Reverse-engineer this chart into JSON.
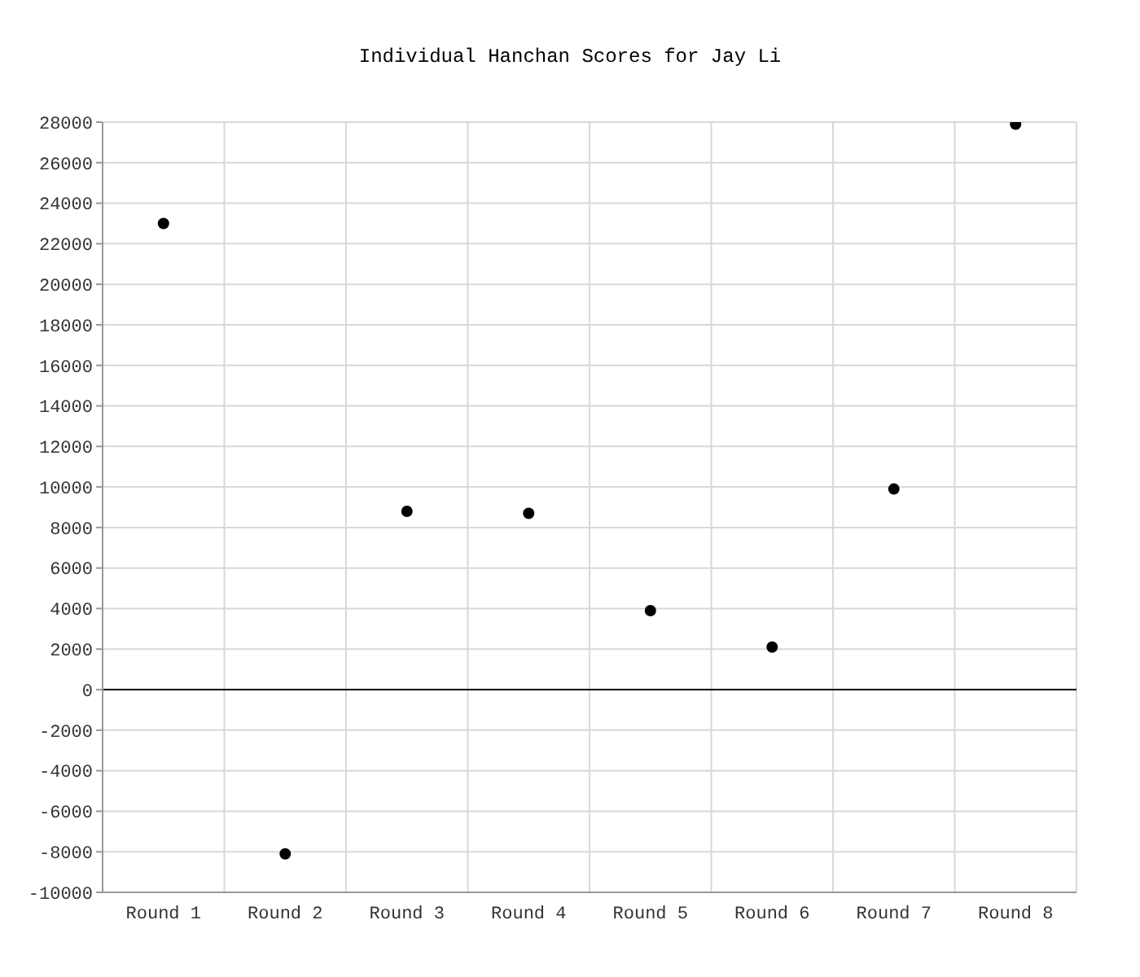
{
  "chart_data": {
    "type": "scatter",
    "title": "Individual Hanchan Scores for Jay Li",
    "categories": [
      "Round 1",
      "Round 2",
      "Round 3",
      "Round 4",
      "Round 5",
      "Round 6",
      "Round 7",
      "Round 8"
    ],
    "series": [
      {
        "color": "#000000",
        "values": [
          23000,
          -8100,
          8800,
          8700,
          3900,
          2100,
          9900,
          27900
        ]
      }
    ],
    "ylim": [
      -10000,
      28000
    ],
    "yticks": [
      -10000,
      -8000,
      -6000,
      -4000,
      -2000,
      0,
      2000,
      4000,
      6000,
      8000,
      10000,
      12000,
      14000,
      16000,
      18000,
      20000,
      22000,
      24000,
      26000,
      28000
    ],
    "grid": true,
    "legend": false,
    "marker": "circle",
    "ref_lines": [
      {
        "axis": "y",
        "value": 0,
        "color": "#000000"
      }
    ]
  }
}
